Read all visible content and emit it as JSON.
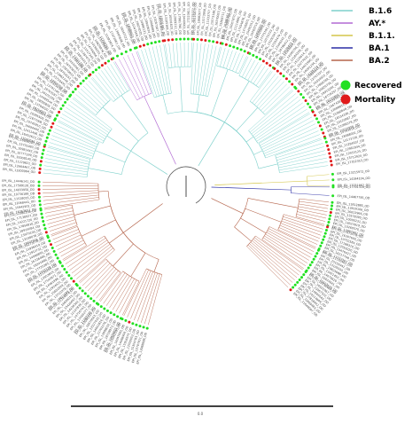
{
  "legend": {
    "lineages": [
      {
        "label": "B.1.6",
        "color": "#7fd1cc"
      },
      {
        "label": "AY.*",
        "color": "#b26ad3"
      },
      {
        "label": "B.1.1.",
        "color": "#d4c64a"
      },
      {
        "label": "BA.1",
        "color": "#2b2fa6"
      },
      {
        "label": "BA.2",
        "color": "#b5654c"
      }
    ],
    "outcomes": [
      {
        "label": "Recovered",
        "color": "#22e022"
      },
      {
        "label": "Mortality",
        "color": "#e01a1a"
      }
    ]
  },
  "scale_bar": {
    "label": "0.0"
  },
  "tree": {
    "clades": [
      {
        "lineage": "BA.2",
        "start_deg": 105,
        "end_deg": 182,
        "tips": 58
      },
      {
        "lineage": "B.1.6",
        "start_deg": 185,
        "end_deg": 240,
        "tips": 40
      },
      {
        "lineage": "AY.*",
        "start_deg": 240,
        "end_deg": 250,
        "tips": 6
      },
      {
        "lineage": "B.1.6",
        "start_deg": 250,
        "end_deg": 352,
        "tips": 72
      },
      {
        "lineage": "B.1.1.",
        "start_deg": 355,
        "end_deg": 360,
        "tips": 3
      },
      {
        "lineage": "BA.1",
        "start_deg": 0,
        "end_deg": 4,
        "tips": 2
      },
      {
        "lineage": "BA.2",
        "start_deg": 6,
        "end_deg": 45,
        "tips": 30
      }
    ],
    "tip_label_prefix": "EPI_ISL_",
    "outcome_pattern": "mostly-recovered"
  }
}
